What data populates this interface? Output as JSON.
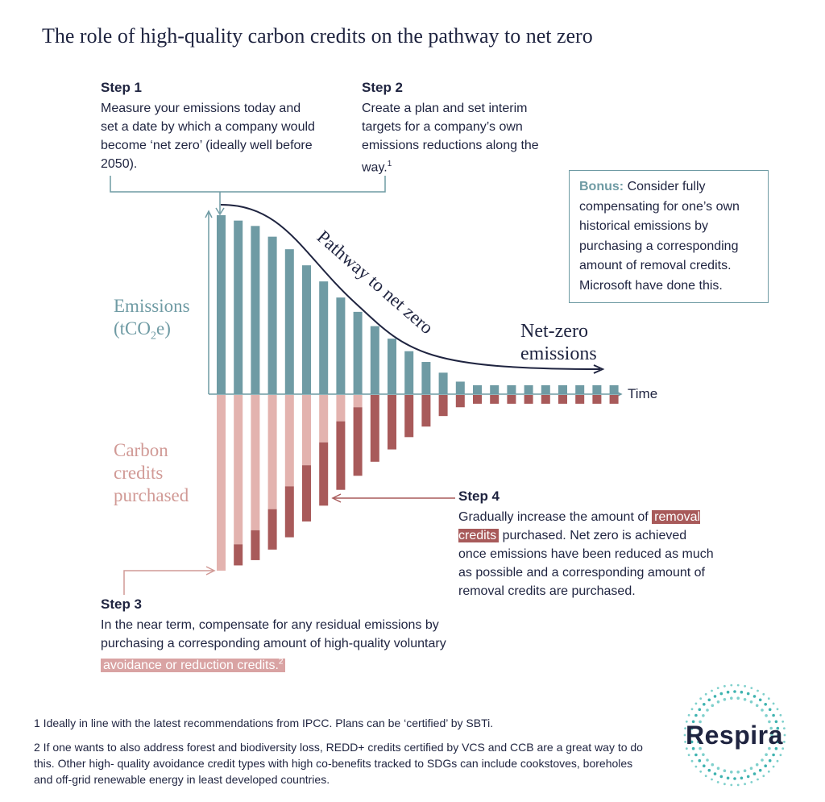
{
  "title": "The role of high-quality carbon credits on the pathway to net zero",
  "step1": {
    "heading": "Step 1",
    "text": "Measure your emissions today and set a date by which a company would become ‘net zero’ (ideally well before 2050)."
  },
  "step2": {
    "heading": "Step 2",
    "text": "Create a plan and set interim targets for a company’s own emissions reductions along the way.",
    "sup": "1"
  },
  "bonus": {
    "label": "Bonus:",
    "text": "Consider fully compensating for one’s own historical emissions by purchasing a corresponding amount of removal credits. Microsoft have done this."
  },
  "axis": {
    "emissions_l1": "Emissions",
    "emissions_l2_pre": "(tCO",
    "emissions_sub": "2",
    "emissions_l2_post": "e)",
    "time": "Time"
  },
  "credits_label": [
    "Carbon",
    "credits",
    "purchased"
  ],
  "pathway_label": "Pathway to net zero",
  "netzero_label": [
    "Net-zero",
    "emissions"
  ],
  "step4": {
    "heading": "Step 4",
    "text_pre": "Gradually increase the amount of",
    "highlight": "removal credits",
    "text_post": "purchased. Net zero is achieved once emissions have been reduced as much as possible and a corresponding amount of removal credits are purchased."
  },
  "step3": {
    "heading": "Step 3",
    "text_pre": "In the near term, compensate for any residual emissions by purchasing a corresponding amount of high-quality voluntary",
    "highlight": "avoidance or reduction credits.",
    "sup": "2"
  },
  "footnote1": "1  Ideally in line with the latest recommendations from IPCC. Plans can be ‘certified’ by SBTi.",
  "footnote2": "2  If one wants to also address forest and biodiversity loss, REDD+ credits certified by VCS and CCB are a great way to do this. Other high- quality avoidance credit types with high co-benefits tracked to SDGs can include cookstoves, boreholes and off-grid renewable energy in least developed countries.",
  "logo": "Respira",
  "colors": {
    "emissions": "#6f9ba4",
    "avoidance": "#e3b3af",
    "removal": "#a85a5a",
    "navy": "#1f2440"
  },
  "chart_data": {
    "type": "bar",
    "series": [
      {
        "name": "Emissions",
        "values": [
          100,
          97,
          94,
          88,
          81,
          72,
          63,
          54,
          46,
          38,
          31,
          24,
          18,
          12,
          7,
          5,
          5,
          5,
          5,
          5,
          5,
          5,
          5,
          5
        ]
      },
      {
        "name": "Avoidance credits",
        "values": [
          100,
          85,
          77,
          65,
          52,
          40,
          27,
          15,
          7,
          0,
          0,
          0,
          0,
          0,
          0,
          0,
          0,
          0,
          0,
          0,
          0,
          0,
          0,
          0
        ]
      },
      {
        "name": "Removal credits",
        "values": [
          0,
          12,
          17,
          23,
          29,
          32,
          36,
          39,
          39,
          38,
          31,
          24,
          18,
          12,
          7,
          5,
          5,
          5,
          5,
          5,
          5,
          5,
          5,
          5
        ]
      }
    ]
  }
}
